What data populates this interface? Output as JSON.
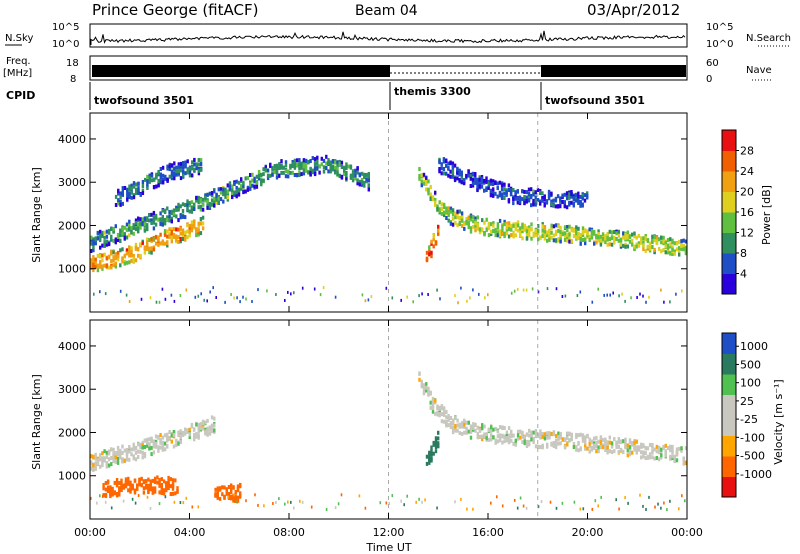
{
  "header": {
    "station": "Prince George (fitACF)",
    "beam": "Beam 04",
    "date": "03/Apr/2012"
  },
  "summary": {
    "nsky_label": "N.Sky",
    "nsearch_label": "N.Search",
    "freq_label_1": "Freq.",
    "freq_label_2": "[MHz]",
    "nave_label": "Nave",
    "cpid_label": "CPID",
    "nsky_ticks": [
      "10^5",
      "10^0"
    ],
    "nsearch_ticks": [
      "10^5",
      "10^0"
    ],
    "freq_ticks": [
      "18",
      "8"
    ],
    "nave_ticks": [
      "60",
      "0"
    ]
  },
  "cpid_segments": [
    {
      "label": "twofsound 3501",
      "start": 0,
      "end": 12
    },
    {
      "label": "themis 3300",
      "start": 12,
      "end": 18
    },
    {
      "label": "twofsound 3501",
      "start": 18,
      "end": 24
    }
  ],
  "colors": {
    "grid_dash": "#aaaaaa",
    "power_scale": [
      "#2a00dd",
      "#1f4fc6",
      "#2f8f5f",
      "#5fbf3f",
      "#dfd020",
      "#f0a010",
      "#f06000",
      "#e81010"
    ],
    "velocity_scale": [
      "#e81010",
      "#ff6600",
      "#ffa500",
      "#c8c8c0",
      "#c8c8c0",
      "#50c050",
      "#2a7a60",
      "#1f4fc6"
    ]
  },
  "chart_data": [
    {
      "type": "heatmap",
      "name": "power",
      "ylabel": "Slant Range [km]",
      "yticks": [
        "1000",
        "2000",
        "3000",
        "4000"
      ],
      "ylim": [
        0,
        4600
      ],
      "xlim": [
        0,
        24
      ],
      "colorbar_label": "Power [dB]",
      "colorbar_ticks": [
        "4",
        "8",
        "12",
        "16",
        "20",
        "24",
        "28"
      ],
      "bands": [
        {
          "t": [
            0,
            1.5,
            3,
            4.5
          ],
          "range": [
            1100,
            1300,
            1700,
            2000
          ],
          "value": 24
        },
        {
          "t": [
            0,
            2,
            4,
            6,
            7.5,
            9.5,
            10.5,
            11.2
          ],
          "range": [
            1600,
            2000,
            2400,
            2900,
            3300,
            3400,
            3200,
            3000
          ],
          "value": 12
        },
        {
          "t": [
            1,
            2,
            3,
            4.5
          ],
          "range": [
            2600,
            2900,
            3200,
            3400
          ],
          "value": 10
        },
        {
          "t": [
            13.2,
            13.8,
            14.5,
            15.5,
            17,
            19,
            21,
            24
          ],
          "range": [
            3200,
            2600,
            2200,
            2000,
            1900,
            1800,
            1700,
            1450
          ],
          "value": 18
        },
        {
          "t": [
            14,
            15.5,
            17,
            18.5,
            20
          ],
          "range": [
            3400,
            3000,
            2700,
            2600,
            2600
          ],
          "value": 8
        },
        {
          "t": [
            13.5,
            13.7,
            14.0
          ],
          "range": [
            1200,
            1500,
            1900
          ],
          "value": 28
        }
      ]
    },
    {
      "type": "heatmap",
      "name": "velocity",
      "ylabel": "Slant Range [km]",
      "yticks": [
        "1000",
        "2000",
        "3000",
        "4000"
      ],
      "ylim": [
        0,
        4600
      ],
      "xlim": [
        0,
        24
      ],
      "xlabel": "Time UT",
      "xticks": [
        "00:00",
        "04:00",
        "08:00",
        "12:00",
        "16:00",
        "20:00",
        "00:00"
      ],
      "colorbar_label": "Velocity [m s⁻¹]",
      "colorbar_ticks": [
        "1000",
        "500",
        "100",
        "25",
        "-25",
        "-100",
        "-500",
        "-1000"
      ],
      "bands": [
        {
          "t": [
            0,
            2,
            4,
            5
          ],
          "range": [
            1300,
            1600,
            2000,
            2200
          ],
          "value": 0
        },
        {
          "t": [
            0.5,
            2,
            3.5
          ],
          "range": [
            700,
            800,
            750
          ],
          "value": -300
        },
        {
          "t": [
            5,
            6
          ],
          "range": [
            600,
            600
          ],
          "value": -300
        },
        {
          "t": [
            13.2,
            13.8,
            14.5,
            15.5,
            17,
            19,
            21,
            24
          ],
          "range": [
            3200,
            2600,
            2200,
            2000,
            1900,
            1800,
            1700,
            1450
          ],
          "value": 0
        },
        {
          "t": [
            13.5,
            13.8,
            14.0
          ],
          "range": [
            1300,
            1600,
            1900
          ],
          "value": 200
        }
      ]
    }
  ]
}
